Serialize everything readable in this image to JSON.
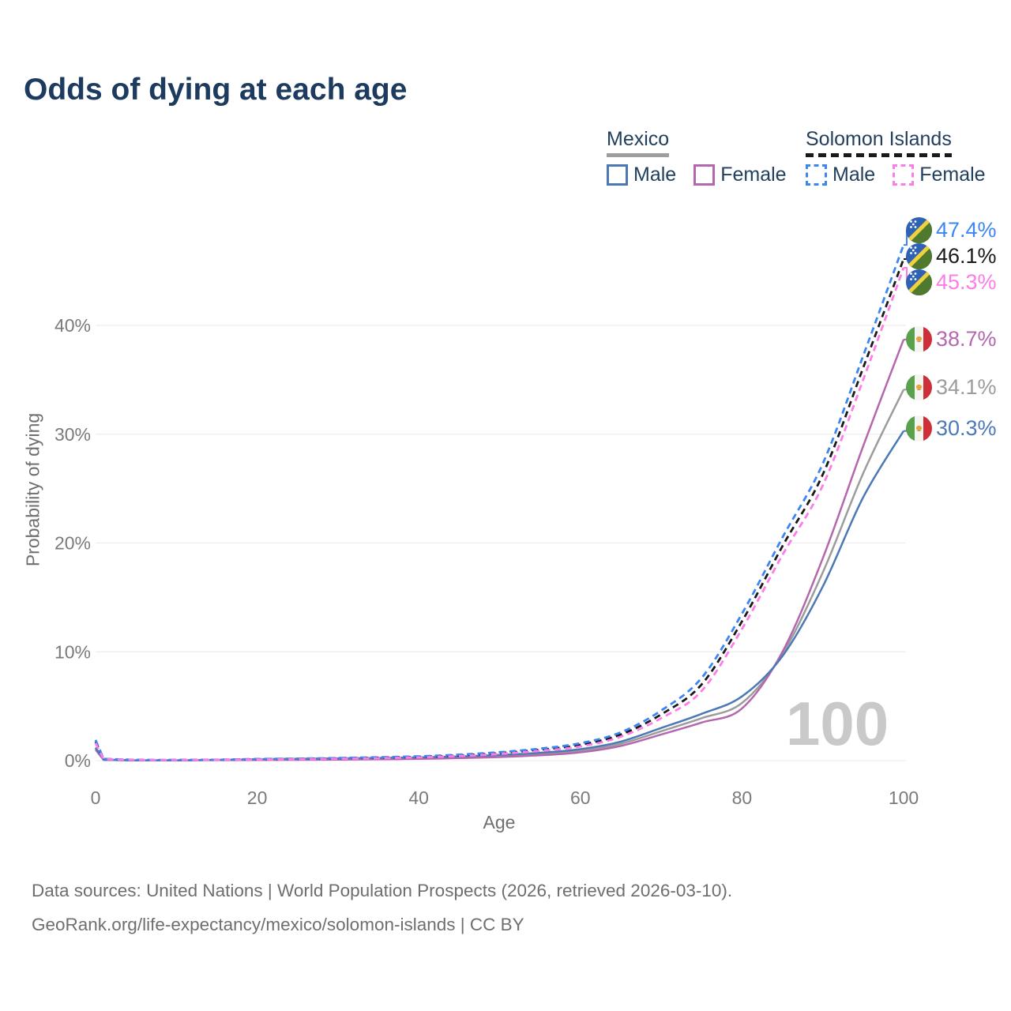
{
  "title": "Odds of dying at each age",
  "legend": {
    "groups": [
      {
        "label": "Mexico",
        "line_style": "solid",
        "underline_color": "#9e9e9e",
        "items": [
          {
            "label": "Male",
            "color": "#4c79b6"
          },
          {
            "label": "Female",
            "color": "#b467ae"
          }
        ]
      },
      {
        "label": "Solomon Islands",
        "line_style": "dashed",
        "underline_color": "#1a1a1a",
        "items": [
          {
            "label": "Male",
            "color": "#3c86f4"
          },
          {
            "label": "Female",
            "color": "#fc7ce8"
          }
        ]
      }
    ]
  },
  "watermark": "100",
  "footer": {
    "line1": "Data sources: United Nations | World Population Prospects (2026, retrieved 2026-03-10).",
    "line2": "GeoRank.org/life-expectancy/mexico/solomon-islands | CC BY"
  },
  "chart_data": {
    "type": "line",
    "title": "Odds of dying at each age",
    "xlabel": "Age",
    "ylabel": "Probability of dying",
    "xlim": [
      0,
      100
    ],
    "ylim": [
      0,
      48
    ],
    "grid": "horizontal",
    "legend_position": "top-right",
    "x_ticks": [
      0,
      20,
      40,
      60,
      80,
      100
    ],
    "y_ticks": [
      {
        "value": 0,
        "label": "0%"
      },
      {
        "value": 10,
        "label": "10%"
      },
      {
        "value": 20,
        "label": "20%"
      },
      {
        "value": 30,
        "label": "30%"
      },
      {
        "value": 40,
        "label": "40%"
      }
    ],
    "ages": [
      0,
      1,
      5,
      10,
      15,
      20,
      25,
      30,
      35,
      40,
      45,
      50,
      55,
      60,
      65,
      70,
      75,
      80,
      85,
      90,
      95,
      100
    ],
    "series": [
      {
        "id": "mx_total",
        "name": "Mexico both sexes",
        "country": "Mexico",
        "sex": "both",
        "color": "#9c9c9c",
        "dash": false,
        "values": [
          1.1,
          0.075,
          0.025,
          0.025,
          0.055,
          0.09,
          0.12,
          0.15,
          0.18,
          0.23,
          0.3,
          0.42,
          0.6,
          0.9,
          1.55,
          2.7,
          3.9,
          5.3,
          9.8,
          17.3,
          26.4,
          34.1
        ]
      },
      {
        "id": "mx_female",
        "name": "Mexico Female",
        "country": "Mexico",
        "sex": "female",
        "color": "#b467ae",
        "dash": false,
        "values": [
          1.0,
          0.07,
          0.02,
          0.02,
          0.04,
          0.05,
          0.07,
          0.09,
          0.12,
          0.16,
          0.23,
          0.33,
          0.49,
          0.76,
          1.35,
          2.4,
          3.5,
          4.8,
          10.0,
          18.6,
          28.9,
          38.7
        ]
      },
      {
        "id": "mx_male",
        "name": "Mexico Male",
        "country": "Mexico",
        "sex": "male",
        "color": "#4c79b6",
        "dash": false,
        "values": [
          1.2,
          0.08,
          0.03,
          0.03,
          0.07,
          0.13,
          0.17,
          0.21,
          0.25,
          0.3,
          0.38,
          0.52,
          0.72,
          1.05,
          1.75,
          3.0,
          4.3,
          5.9,
          9.6,
          16.0,
          24.2,
          30.3
        ]
      },
      {
        "id": "si_total",
        "name": "Solomon Islands both sexes",
        "country": "Solomon Islands",
        "sex": "both",
        "color": "#1a1a1a",
        "dash": true,
        "values": [
          1.75,
          0.145,
          0.065,
          0.055,
          0.08,
          0.125,
          0.16,
          0.21,
          0.27,
          0.35,
          0.48,
          0.7,
          1.0,
          1.45,
          2.4,
          4.25,
          7.0,
          12.8,
          19.7,
          26.3,
          36.1,
          46.1
        ]
      },
      {
        "id": "si_male",
        "name": "Solomon Islands Male",
        "country": "Solomon Islands",
        "sex": "male",
        "color": "#3c86f4",
        "dash": true,
        "values": [
          1.9,
          0.16,
          0.07,
          0.06,
          0.09,
          0.15,
          0.19,
          0.24,
          0.31,
          0.4,
          0.55,
          0.78,
          1.1,
          1.6,
          2.6,
          4.6,
          7.6,
          13.5,
          20.5,
          27.3,
          37.2,
          47.4
        ]
      },
      {
        "id": "si_female",
        "name": "Solomon Islands Female",
        "country": "Solomon Islands",
        "sex": "female",
        "color": "#fc7ce8",
        "dash": true,
        "values": [
          1.6,
          0.13,
          0.06,
          0.05,
          0.07,
          0.1,
          0.13,
          0.17,
          0.22,
          0.3,
          0.42,
          0.62,
          0.9,
          1.3,
          2.2,
          3.9,
          6.4,
          12.1,
          18.9,
          25.3,
          35.0,
          45.3
        ]
      }
    ],
    "end_labels": [
      {
        "text": "47.4%",
        "series_id": "si_male",
        "flag": "solomon-islands",
        "color": "#3c86f4"
      },
      {
        "text": "46.1%",
        "series_id": "si_total",
        "flag": "solomon-islands",
        "color": "#1a1a1a"
      },
      {
        "text": "45.3%",
        "series_id": "si_female",
        "flag": "solomon-islands",
        "color": "#fc7ce8"
      },
      {
        "text": "38.7%",
        "series_id": "mx_female",
        "flag": "mexico",
        "color": "#b467ae"
      },
      {
        "text": "34.1%",
        "series_id": "mx_total",
        "flag": "mexico",
        "color": "#9c9c9c"
      },
      {
        "text": "30.3%",
        "series_id": "mx_male",
        "flag": "mexico",
        "color": "#4c79b6"
      }
    ]
  }
}
